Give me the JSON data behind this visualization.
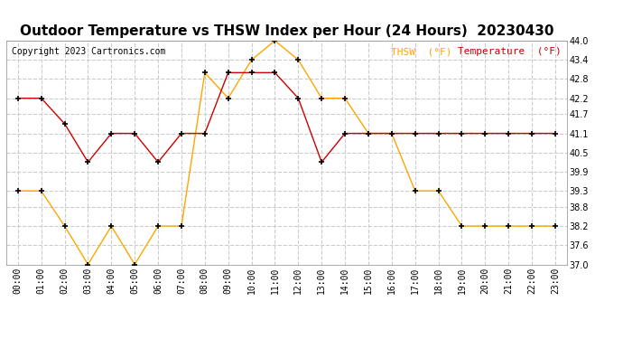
{
  "title": "Outdoor Temperature vs THSW Index per Hour (24 Hours)  20230430",
  "copyright": "Copyright 2023 Cartronics.com",
  "legend_thsw": "THSW  (°F)",
  "legend_temp": "Temperature  (°F)",
  "hours": [
    "00:00",
    "01:00",
    "02:00",
    "03:00",
    "04:00",
    "05:00",
    "06:00",
    "07:00",
    "08:00",
    "09:00",
    "10:00",
    "11:00",
    "12:00",
    "13:00",
    "14:00",
    "15:00",
    "16:00",
    "17:00",
    "18:00",
    "19:00",
    "20:00",
    "21:00",
    "22:00",
    "23:00"
  ],
  "temperature": [
    42.2,
    42.2,
    41.4,
    40.2,
    41.1,
    41.1,
    40.2,
    41.1,
    41.1,
    43.0,
    43.0,
    43.0,
    42.2,
    40.2,
    41.1,
    41.1,
    41.1,
    41.1,
    41.1,
    41.1,
    41.1,
    41.1,
    41.1,
    41.1
  ],
  "thsw": [
    39.3,
    39.3,
    38.2,
    37.0,
    38.2,
    37.0,
    38.2,
    38.2,
    43.0,
    42.2,
    43.4,
    44.0,
    43.4,
    42.2,
    42.2,
    41.1,
    41.1,
    39.3,
    39.3,
    38.2,
    38.2,
    38.2,
    38.2,
    38.2
  ],
  "ylim": [
    37.0,
    44.0
  ],
  "yticks": [
    37.0,
    37.6,
    38.2,
    38.8,
    39.3,
    39.9,
    40.5,
    41.1,
    41.7,
    42.2,
    42.8,
    43.4,
    44.0
  ],
  "temp_color": "#cc0000",
  "thsw_color": "#ffa500",
  "title_color": "#000000",
  "copyright_color": "#000000",
  "legend_thsw_color": "#ffa500",
  "legend_temp_color": "#cc0000",
  "bg_color": "#ffffff",
  "grid_color": "#cccccc",
  "marker": "+",
  "markersize": 5,
  "markeredgewidth": 1.2,
  "linewidth": 1.0,
  "title_fontsize": 11,
  "axis_fontsize": 7,
  "copyright_fontsize": 7,
  "legend_fontsize": 8
}
